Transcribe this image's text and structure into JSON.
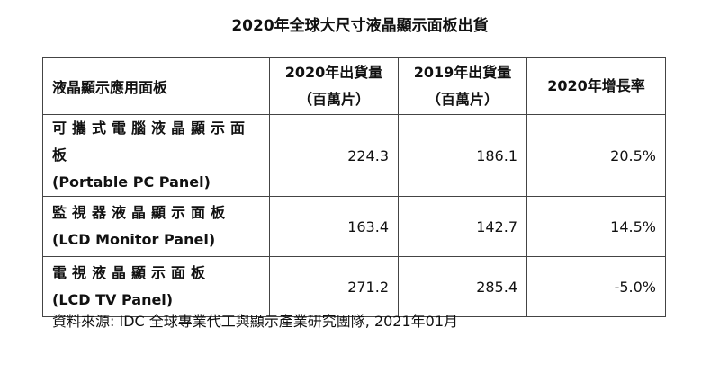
{
  "title": "2020年全球大尺寸液晶顯示面板出貨",
  "table": {
    "header": [
      [
        "液晶顯示應用面板"
      ],
      [
        "2020年出貨量",
        "（百萬片）"
      ],
      [
        "2019年出貨量",
        "（百萬片）"
      ],
      [
        "2020年增長率"
      ]
    ],
    "rows": [
      [
        [
          "可攜式電腦液晶顯示面板",
          "(Portable PC Panel)"
        ],
        "224.3",
        "186.1",
        "20.5%"
      ],
      [
        [
          "監視器液晶顯示面板",
          "(LCD Monitor Panel)"
        ],
        "163.4",
        "142.7",
        "14.5%"
      ],
      [
        [
          "電視液晶顯示面板",
          "(LCD TV Panel)"
        ],
        "271.2",
        "285.4",
        "-5.0%"
      ]
    ]
  },
  "source": "資料來源: IDC 全球專業代工與顯示產業研究團隊, 2021年01月"
}
